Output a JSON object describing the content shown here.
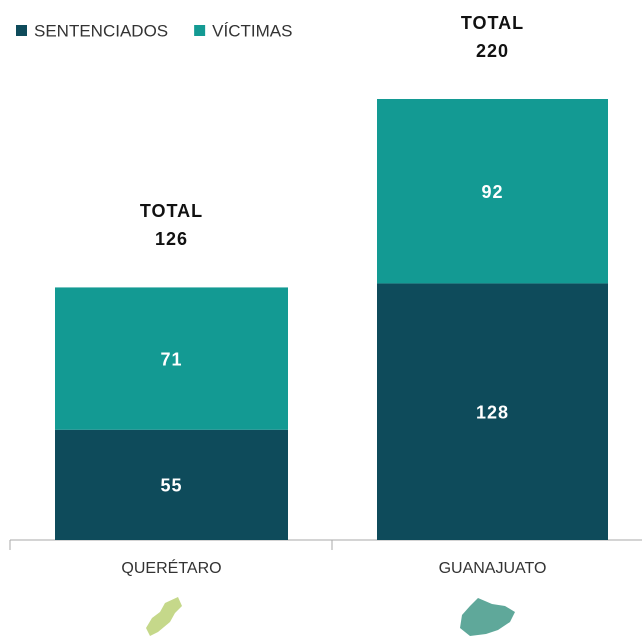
{
  "chart_data": {
    "type": "stacked_bar",
    "categories": [
      "QUERÉTARO",
      "GUANAJUATO"
    ],
    "series": [
      {
        "name": "SENTENCIADOS",
        "color": "#0e4b5b",
        "values": [
          55,
          128
        ]
      },
      {
        "name": "VÍCTIMAS",
        "color": "#139a93",
        "values": [
          71,
          92
        ]
      }
    ],
    "total_label": "TOTAL",
    "totals": [
      126,
      220
    ],
    "legend": "top-left"
  }
}
